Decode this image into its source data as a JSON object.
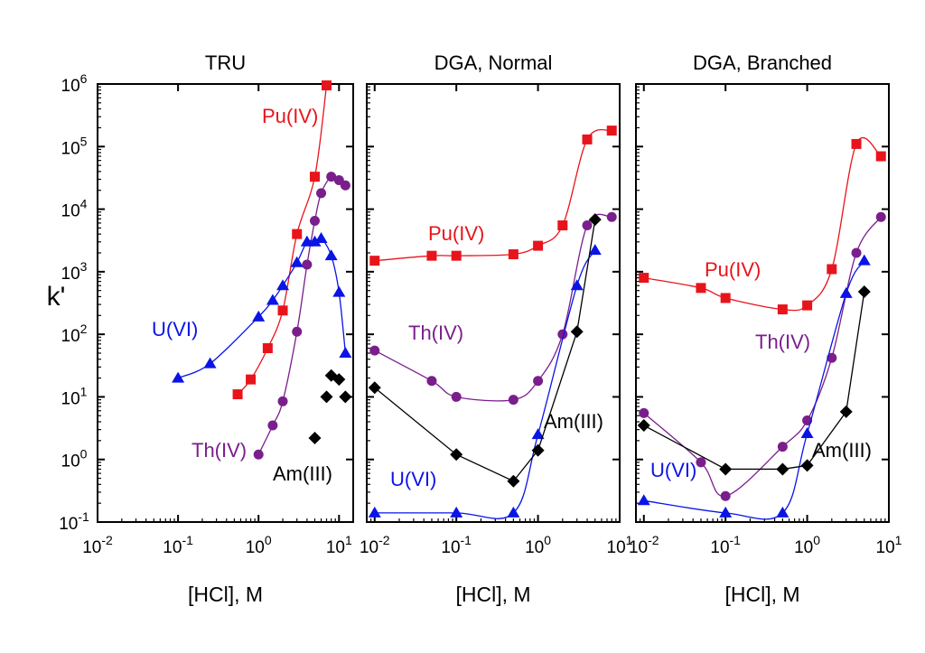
{
  "chart_data": {
    "type": "scatter",
    "y_label": "k'",
    "y_scale": "log",
    "ylim": [
      0.1,
      1000000
    ],
    "y_ticks": [
      0.1,
      1,
      10,
      100,
      1000,
      10000,
      100000,
      1000000
    ],
    "x_scale": "log",
    "colors": {
      "Pu(IV)": "#e8141b",
      "Th(IV)": "#7a1e8c",
      "U(VI)": "#0a14e6",
      "Am(III)": "#000000"
    },
    "markers": {
      "Pu(IV)": "square",
      "Th(IV)": "circle",
      "U(VI)": "triangle",
      "Am(III)": "diamond"
    },
    "panels": [
      {
        "title": "TRU",
        "xlabel": "[HCl], M",
        "xlim": [
          0.01,
          15
        ],
        "x_ticks": [
          0.01,
          0.1,
          1,
          10
        ],
        "series": [
          {
            "name": "Pu(IV)",
            "points": [
              [
                0.55,
                11
              ],
              [
                0.8,
                19
              ],
              [
                1.3,
                60
              ],
              [
                2,
                240
              ],
              [
                3,
                4000
              ],
              [
                5,
                33000
              ],
              [
                7,
                950000
              ]
            ]
          },
          {
            "name": "Th(IV)",
            "points": [
              [
                1,
                1.2
              ],
              [
                1.5,
                3.5
              ],
              [
                2,
                8.5
              ],
              [
                3,
                110
              ],
              [
                4,
                1300
              ],
              [
                5,
                6500
              ],
              [
                6,
                18000
              ],
              [
                8,
                33000
              ],
              [
                10,
                29000
              ],
              [
                12,
                24000
              ]
            ]
          },
          {
            "name": "U(VI)",
            "points": [
              [
                0.1,
                20
              ],
              [
                0.25,
                34
              ],
              [
                1,
                190
              ],
              [
                1.5,
                350
              ],
              [
                2,
                600
              ],
              [
                3,
                1400
              ],
              [
                4,
                3000
              ],
              [
                5,
                3000
              ],
              [
                6,
                3400
              ],
              [
                8,
                1800
              ],
              [
                10,
                470
              ],
              [
                12,
                50
              ]
            ]
          },
          {
            "name": "Am(III)",
            "points": [
              [
                5,
                2.2
              ],
              [
                7,
                10
              ],
              [
                8,
                22
              ],
              [
                10,
                19
              ],
              [
                12,
                10
              ]
            ]
          }
        ],
        "labels": {
          "Pu(IV)": "Pu(IV)",
          "Th(IV)": "Th(IV)",
          "U(VI)": "U(VI)",
          "Am(III)": "Am(III)"
        }
      },
      {
        "title": "DGA, Normal",
        "xlabel": "[HCl], M",
        "xlim": [
          0.008,
          10
        ],
        "x_ticks": [
          0.01,
          0.1,
          1,
          10
        ],
        "series": [
          {
            "name": "Pu(IV)",
            "points": [
              [
                0.01,
                1500
              ],
              [
                0.05,
                1800
              ],
              [
                0.1,
                1800
              ],
              [
                0.5,
                1900
              ],
              [
                1,
                2600
              ],
              [
                2,
                5500
              ],
              [
                4,
                130000
              ],
              [
                8,
                180000
              ]
            ]
          },
          {
            "name": "Th(IV)",
            "points": [
              [
                0.01,
                55
              ],
              [
                0.05,
                18
              ],
              [
                0.1,
                10
              ],
              [
                0.5,
                9
              ],
              [
                1,
                18
              ],
              [
                2,
                100
              ],
              [
                4,
                5500
              ],
              [
                8,
                7500
              ]
            ]
          },
          {
            "name": "U(VI)",
            "points": [
              [
                0.01,
                0.14
              ],
              [
                0.1,
                0.14
              ],
              [
                0.5,
                0.14
              ],
              [
                1,
                2.5
              ],
              [
                3,
                600
              ],
              [
                5,
                2200
              ]
            ]
          },
          {
            "name": "Am(III)",
            "points": [
              [
                0.01,
                14
              ],
              [
                0.1,
                1.2
              ],
              [
                0.5,
                0.45
              ],
              [
                1,
                1.4
              ],
              [
                3,
                110
              ],
              [
                5,
                6800
              ]
            ]
          }
        ],
        "labels": {
          "Pu(IV)": "Pu(IV)",
          "Th(IV)": "Th(IV)",
          "U(VI)": "U(VI)",
          "Am(III)": "Am(III)"
        }
      },
      {
        "title": "DGA, Branched",
        "xlabel": "[HCl], M",
        "xlim": [
          0.008,
          10
        ],
        "x_ticks": [
          0.01,
          0.1,
          1,
          10
        ],
        "series": [
          {
            "name": "Pu(IV)",
            "points": [
              [
                0.01,
                800
              ],
              [
                0.05,
                550
              ],
              [
                0.1,
                380
              ],
              [
                0.5,
                250
              ],
              [
                1,
                290
              ],
              [
                2,
                1100
              ],
              [
                4,
                110000
              ],
              [
                8,
                70000
              ]
            ]
          },
          {
            "name": "Th(IV)",
            "points": [
              [
                0.01,
                5.5
              ],
              [
                0.05,
                0.9
              ],
              [
                0.1,
                0.26
              ],
              [
                0.5,
                1.6
              ],
              [
                1,
                4.2
              ],
              [
                2,
                42
              ],
              [
                4,
                2000
              ],
              [
                8,
                7500
              ]
            ]
          },
          {
            "name": "U(VI)",
            "points": [
              [
                0.01,
                0.22
              ],
              [
                0.1,
                0.14
              ],
              [
                0.5,
                0.14
              ],
              [
                1,
                2.6
              ],
              [
                3,
                450
              ],
              [
                5,
                1500
              ]
            ]
          },
          {
            "name": "Am(III)",
            "points": [
              [
                0.01,
                3.5
              ],
              [
                0.1,
                0.7
              ],
              [
                0.5,
                0.7
              ],
              [
                1,
                0.8
              ],
              [
                3,
                5.8
              ],
              [
                5,
                480
              ]
            ]
          }
        ],
        "labels": {
          "Pu(IV)": "Pu(IV)",
          "Th(IV)": "Th(IV)",
          "U(VI)": "U(VI)",
          "Am(III)": "Am(III)"
        }
      }
    ]
  }
}
